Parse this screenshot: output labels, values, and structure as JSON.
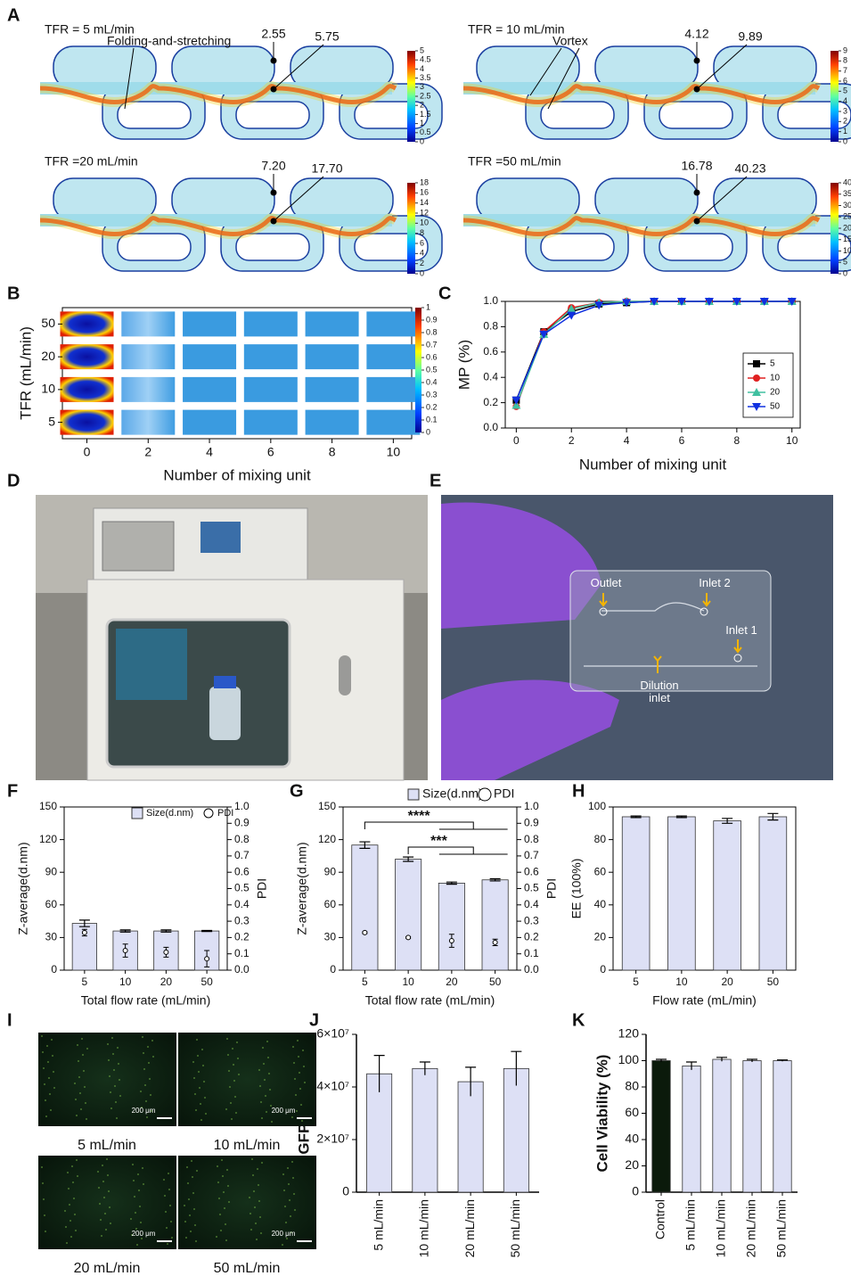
{
  "panel_labels": [
    "A",
    "B",
    "C",
    "D",
    "E",
    "F",
    "G",
    "H",
    "I",
    "J",
    "K"
  ],
  "cfd_panels": [
    {
      "title": "TFR = 5 mL/min",
      "annotations": [
        "Folding-and-stretching",
        "2.55",
        "5.75"
      ],
      "colorbar_ticks": [
        0,
        0.5,
        1,
        1.5,
        2,
        2.5,
        3,
        3.5,
        4,
        4.5,
        5
      ]
    },
    {
      "title": "TFR = 10 mL/min",
      "annotations": [
        "Vortex",
        "4.12",
        "9.89"
      ],
      "colorbar_ticks": [
        0,
        1,
        2,
        3,
        4,
        5,
        6,
        7,
        8,
        9
      ]
    },
    {
      "title": "TFR =20 mL/min",
      "annotations": [
        "7.20",
        "17.70"
      ],
      "colorbar_ticks": [
        0,
        2,
        4,
        6,
        8,
        10,
        12,
        14,
        16,
        18
      ]
    },
    {
      "title": "TFR =50 mL/min",
      "annotations": [
        "16.78",
        "40.23"
      ],
      "colorbar_ticks": [
        0,
        5,
        10,
        15,
        20,
        25,
        30,
        35,
        40
      ]
    }
  ],
  "chart_data": [
    {
      "type": "heatmap",
      "ylabel": "TFR (mL/min)",
      "xlabel": "Number of mixing unit",
      "categories": [
        "50",
        "20",
        "10",
        "5"
      ],
      "xlim": [
        -0.8,
        10.6
      ],
      "xticks": [
        0,
        2,
        4,
        6,
        8,
        10
      ],
      "colorbar_ticks": [
        0,
        0.1,
        0.2,
        0.3,
        0.4,
        0.5,
        0.6,
        0.7,
        0.8,
        0.9,
        1
      ]
    },
    {
      "type": "line",
      "xlabel": "Number of mixing unit",
      "ylabel": "MP (%)",
      "x": [
        0,
        1,
        2,
        3,
        4,
        5,
        6,
        7,
        8,
        9,
        10
      ],
      "series": [
        {
          "name": "5",
          "color": "#000000",
          "marker": "square",
          "values": [
            0.22,
            0.76,
            0.92,
            0.98,
            0.99,
            1.0,
            1.0,
            1.0,
            1.0,
            1.0,
            1.0
          ]
        },
        {
          "name": "10",
          "color": "#e02020",
          "marker": "circle",
          "values": [
            0.17,
            0.76,
            0.95,
            0.99,
            1.0,
            1.0,
            1.0,
            1.0,
            1.0,
            1.0,
            1.0
          ]
        },
        {
          "name": "20",
          "color": "#40c0a0",
          "marker": "triangle-up",
          "values": [
            0.18,
            0.74,
            0.94,
            0.99,
            1.0,
            1.0,
            1.0,
            1.0,
            1.0,
            1.0,
            1.0
          ]
        },
        {
          "name": "50",
          "color": "#1030e0",
          "marker": "triangle-down",
          "values": [
            0.22,
            0.74,
            0.89,
            0.97,
            0.99,
            1.0,
            1.0,
            1.0,
            1.0,
            1.0,
            1.0
          ]
        }
      ],
      "xlim": [
        -0.4,
        10.3
      ],
      "xticks": [
        0,
        2,
        4,
        6,
        8,
        10
      ],
      "ylim": [
        0,
        1
      ],
      "yticks": [
        {
          "value": 0,
          "label": "0.0"
        },
        0.2,
        0.4,
        0.6,
        0.8,
        {
          "value": 1,
          "label": "1.0"
        }
      ],
      "legend": "lower right"
    },
    {
      "type": "bar",
      "xlabel": "Total flow rate (mL/min)",
      "ylabel": "Z-average(d.nm)",
      "y2label": "PDI",
      "categories": [
        "5",
        "10",
        "20",
        "50"
      ],
      "series": [
        {
          "name": "Size(d.nm)",
          "color": "#dde0f5",
          "values": [
            43,
            36,
            36,
            36
          ],
          "errors": [
            3,
            1,
            1,
            0.5
          ]
        },
        {
          "name": "PDI",
          "axis": "y2",
          "marker": "circle",
          "values": [
            0.23,
            0.12,
            0.11,
            0.07
          ],
          "errors": [
            0.02,
            0.04,
            0.03,
            0.05
          ]
        }
      ],
      "ylim": [
        0,
        150
      ],
      "yticks": [
        0,
        30,
        60,
        90,
        120,
        150
      ],
      "y2lim": [
        0,
        1
      ],
      "y2ticks": [
        {
          "value": 0,
          "label": "0.0"
        },
        0.1,
        0.2,
        0.3,
        0.4,
        0.5,
        0.6,
        0.7,
        0.8,
        0.9,
        {
          "value": 1,
          "label": "1.0"
        }
      ]
    },
    {
      "type": "bar",
      "xlabel": "Total flow rate (mL/min)",
      "ylabel": "Z-average(d.nm)",
      "y2label": "PDI",
      "categories": [
        "5",
        "10",
        "20",
        "50"
      ],
      "series": [
        {
          "name": "Size(d.nm)",
          "color": "#dde0f5",
          "values": [
            115,
            102,
            80,
            83
          ],
          "errors": [
            3,
            2,
            1,
            1
          ]
        },
        {
          "name": "PDI",
          "axis": "y2",
          "marker": "circle",
          "values": [
            0.23,
            0.2,
            0.18,
            0.17
          ],
          "errors": [
            0.005,
            0.005,
            0.04,
            0.02
          ]
        }
      ],
      "annotations": [
        "****",
        "***"
      ],
      "ylim": [
        0,
        150
      ],
      "yticks": [
        0,
        30,
        60,
        90,
        120,
        150
      ],
      "y2lim": [
        0,
        1
      ],
      "y2ticks": [
        {
          "value": 0,
          "label": "0.0"
        },
        0.1,
        0.2,
        0.3,
        0.4,
        0.5,
        0.6,
        0.7,
        0.8,
        0.9,
        {
          "value": 1,
          "label": "1.0"
        }
      ]
    },
    {
      "type": "bar",
      "xlabel": "Flow rate (mL/min)",
      "ylabel": "EE (100%)",
      "categories": [
        "5",
        "10",
        "20",
        "50"
      ],
      "series": [
        {
          "color": "#dde0f5",
          "values": [
            94,
            94,
            91.5,
            94
          ],
          "errors": [
            0.5,
            0.5,
            1.5,
            2
          ]
        }
      ],
      "ylim": [
        0,
        100
      ],
      "yticks": [
        0,
        20,
        40,
        60,
        80,
        100
      ]
    },
    {
      "type": "bar",
      "ylabel": "GFP IntDen",
      "categories": [
        "5 mL/min",
        "10 mL/min",
        "20 mL/min",
        "50 mL/min"
      ],
      "series": [
        {
          "color": "#dde0f5",
          "values": [
            45000000,
            47000000,
            42000000,
            47000000
          ],
          "errors": [
            7000000,
            2500000,
            5500000,
            6500000
          ]
        }
      ],
      "ylim": [
        0,
        60000000
      ],
      "yticks": [
        0,
        {
          "value": 20000000,
          "label": "2×10⁷"
        },
        {
          "value": 40000000,
          "label": "4×10⁷"
        },
        {
          "value": 60000000,
          "label": "6×10⁷"
        }
      ]
    },
    {
      "type": "bar",
      "ylabel": "Cell Viability (%)",
      "categories": [
        "Control",
        "5 mL/min",
        "10 mL/min",
        "20 mL/min",
        "50 mL/min"
      ],
      "series": [
        {
          "colors": [
            "#0b1a0b",
            "#dde0f5",
            "#dde0f5",
            "#dde0f5",
            "#dde0f5"
          ],
          "values": [
            100,
            96,
            101,
            100,
            100
          ],
          "errors": [
            1,
            3,
            1.5,
            1,
            0.5
          ]
        }
      ],
      "ylim": [
        0,
        120
      ],
      "yticks": [
        0,
        20,
        40,
        60,
        80,
        100,
        120
      ]
    }
  ],
  "photo_e_labels": [
    "Outlet",
    "Inlet 2",
    "Inlet 1",
    "Dilution inlet"
  ],
  "microscopy": {
    "scale_bar": "200 μm",
    "labels": [
      "5 mL/min",
      "10 mL/min",
      "20 mL/min",
      "50 mL/min"
    ]
  }
}
